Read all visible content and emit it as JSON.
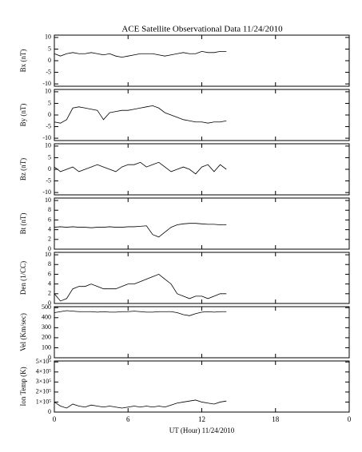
{
  "chart_data": [
    {
      "type": "line",
      "title": "ACE Satellite Observational Data   11/24/2010",
      "ylabel": "Bx (nT)",
      "color": "#000000",
      "x": [
        0,
        0.5,
        1,
        1.5,
        2,
        2.5,
        3,
        3.5,
        4,
        4.5,
        5,
        5.5,
        6,
        6.5,
        7,
        7.5,
        8,
        8.5,
        9,
        9.5,
        10,
        10.5,
        11,
        11.5,
        12,
        12.5,
        13,
        13.5,
        14
      ],
      "values": [
        3,
        2,
        3,
        3.5,
        3,
        3,
        3.5,
        3,
        2.5,
        3,
        2,
        1.5,
        2,
        2.5,
        3,
        3,
        3,
        2.5,
        2,
        2.5,
        3,
        3.5,
        3,
        3,
        4,
        3.5,
        3.5,
        4,
        4
      ],
      "ylim": [
        -11,
        11
      ],
      "yticks": [
        -10,
        -5,
        0,
        5,
        10
      ]
    },
    {
      "type": "line",
      "ylabel": "By (nT)",
      "color": "#000000",
      "x": [
        0,
        0.5,
        1,
        1.5,
        2,
        2.5,
        3,
        3.5,
        4,
        4.5,
        5,
        5.5,
        6,
        6.5,
        7,
        7.5,
        8,
        8.5,
        9,
        9.5,
        10,
        10.5,
        11,
        11.5,
        12,
        12.5,
        13,
        13.5,
        14
      ],
      "values": [
        -3,
        -3.5,
        -2,
        3,
        3.5,
        3,
        2.5,
        2,
        -2,
        1,
        1.5,
        2,
        2,
        2.5,
        3,
        3.5,
        4,
        3,
        1,
        0,
        -1,
        -2,
        -2.5,
        -3,
        -3,
        -3.5,
        -3,
        -3,
        -2.5
      ],
      "ylim": [
        -11,
        11
      ],
      "yticks": [
        -10,
        -5,
        0,
        5,
        10
      ]
    },
    {
      "type": "line",
      "ylabel": "Bz (nT)",
      "color": "#000000",
      "x": [
        0,
        0.5,
        1,
        1.5,
        2,
        2.5,
        3,
        3.5,
        4,
        4.5,
        5,
        5.5,
        6,
        6.5,
        7,
        7.5,
        8,
        8.5,
        9,
        9.5,
        10,
        10.5,
        11,
        11.5,
        12,
        12.5,
        13,
        13.5,
        14
      ],
      "values": [
        1,
        -1,
        0,
        1,
        -1,
        0,
        1,
        2,
        1,
        0,
        -1,
        1,
        2,
        2,
        3,
        1,
        2,
        3,
        1,
        -1,
        0,
        1,
        0,
        -2,
        1,
        2,
        -1,
        2,
        0
      ],
      "ylim": [
        -11,
        11
      ],
      "yticks": [
        -10,
        -5,
        0,
        5,
        10
      ]
    },
    {
      "type": "line",
      "ylabel": "Bt (nT)",
      "color": "#000000",
      "x": [
        0,
        0.5,
        1,
        1.5,
        2,
        2.5,
        3,
        3.5,
        4,
        4.5,
        5,
        5.5,
        6,
        6.5,
        7,
        7.5,
        8,
        8.5,
        9,
        9.5,
        10,
        10.5,
        11,
        11.5,
        12,
        12.5,
        13,
        13.5,
        14
      ],
      "values": [
        4.5,
        4.6,
        4.5,
        4.6,
        4.5,
        4.5,
        4.4,
        4.5,
        4.5,
        4.6,
        4.5,
        4.5,
        4.6,
        4.6,
        4.7,
        4.8,
        3,
        2.5,
        3.5,
        4.5,
        5,
        5.2,
        5.3,
        5.3,
        5.2,
        5.1,
        5.1,
        5,
        5
      ],
      "ylim": [
        0,
        10.5
      ],
      "yticks": [
        0,
        2,
        4,
        6,
        8,
        10
      ]
    },
    {
      "type": "line",
      "ylabel": "Den (1/CC)",
      "color": "#000000",
      "x": [
        0,
        0.5,
        1,
        1.5,
        2,
        2.5,
        3,
        3.5,
        4,
        4.5,
        5,
        5.5,
        6,
        6.5,
        7,
        7.5,
        8,
        8.5,
        9,
        9.5,
        10,
        10.5,
        11,
        11.5,
        12,
        12.5,
        13,
        13.5,
        14
      ],
      "values": [
        2,
        0.5,
        1,
        3,
        3.5,
        3.5,
        4,
        3.5,
        3,
        3,
        3,
        3.5,
        4,
        4,
        4.5,
        5,
        5.5,
        6,
        5,
        4,
        2,
        1.5,
        1,
        1.5,
        1.5,
        1,
        1.5,
        2,
        2
      ],
      "ylim": [
        0,
        10.5
      ],
      "yticks": [
        0,
        2,
        4,
        6,
        8,
        10
      ]
    },
    {
      "type": "line",
      "ylabel": "Vel (Km/sec)",
      "color": "#000000",
      "x": [
        0,
        0.5,
        1,
        1.5,
        2,
        2.5,
        3,
        3.5,
        4,
        4.5,
        5,
        5.5,
        6,
        6.5,
        7,
        7.5,
        8,
        8.5,
        9,
        9.5,
        10,
        10.5,
        11,
        11.5,
        12,
        12.5,
        13,
        13.5,
        14
      ],
      "values": [
        450,
        460,
        470,
        465,
        460,
        460,
        460,
        455,
        460,
        455,
        455,
        460,
        460,
        465,
        460,
        455,
        455,
        460,
        460,
        460,
        450,
        430,
        420,
        440,
        455,
        460,
        455,
        460,
        460
      ],
      "ylim": [
        0,
        510
      ],
      "yticks": [
        0,
        100,
        200,
        300,
        400,
        500
      ]
    },
    {
      "type": "line",
      "ylabel": "Ion Temp (K)",
      "xlabel": "UT (Hour)  11/24/2010",
      "color": "#000000",
      "x": [
        0,
        0.5,
        1,
        1.5,
        2,
        2.5,
        3,
        3.5,
        4,
        4.5,
        5,
        5.5,
        6,
        6.5,
        7,
        7.5,
        8,
        8.5,
        9,
        9.5,
        10,
        10.5,
        11,
        11.5,
        12,
        12.5,
        13,
        13.5,
        14
      ],
      "values": [
        100000,
        60000,
        40000,
        80000,
        60000,
        50000,
        70000,
        60000,
        50000,
        60000,
        50000,
        40000,
        50000,
        60000,
        50000,
        60000,
        50000,
        60000,
        50000,
        70000,
        90000,
        100000,
        110000,
        120000,
        100000,
        90000,
        80000,
        100000,
        110000
      ],
      "ylim": [
        0,
        510000
      ],
      "yticks": [
        0,
        {
          "value": 100000,
          "label": "1×10⁵"
        },
        {
          "value": 200000,
          "label": "2×10⁵"
        },
        {
          "value": 300000,
          "label": "3×10⁵"
        },
        {
          "value": 400000,
          "label": "4×10⁵"
        },
        {
          "value": 500000,
          "label": "5×10⁵"
        }
      ],
      "xlim": [
        0,
        24
      ],
      "xticks": [
        0,
        6,
        12,
        18,
        {
          "value": 24,
          "label": "0"
        }
      ]
    }
  ]
}
